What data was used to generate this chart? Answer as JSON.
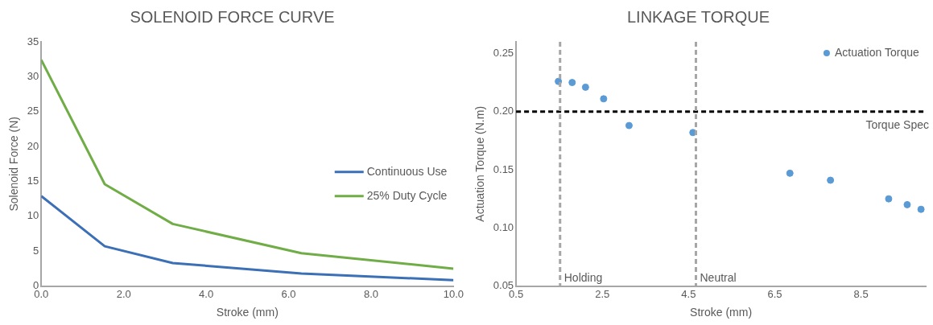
{
  "chart_data": [
    {
      "type": "line",
      "title": "SOLENOID FORCE CURVE",
      "xlabel": "Stroke (mm)",
      "ylabel": "Solenoid Force (N)",
      "x": [
        0,
        1.54,
        3.19,
        6.31,
        10
      ],
      "series": [
        {
          "name": "Continuous Use",
          "color": "#3b6fb6",
          "values": [
            12.9,
            5.7,
            3.3,
            1.8,
            0.85
          ]
        },
        {
          "name": "25% Duty Cycle",
          "color": "#70ad47",
          "values": [
            32.4,
            14.6,
            8.9,
            4.7,
            2.5
          ]
        }
      ],
      "xlim": [
        0,
        10
      ],
      "xticks": [
        {
          "value": 0,
          "label": "0.0"
        },
        {
          "value": 2,
          "label": "2.0"
        },
        {
          "value": 4,
          "label": "4.0"
        },
        {
          "value": 6,
          "label": "6.0"
        },
        {
          "value": 8,
          "label": "8.0"
        },
        {
          "value": 10,
          "label": "10.0"
        }
      ],
      "ylim": [
        0,
        35
      ],
      "yticks": [
        0,
        5,
        10,
        15,
        20,
        25,
        30,
        35
      ],
      "grid": false,
      "legend": "right",
      "marker": "none",
      "line_style": "solid"
    },
    {
      "type": "scatter",
      "title": "LINKAGE TORQUE",
      "xlabel": "Stroke (mm)",
      "ylabel": "Actuation Torque (N.m)",
      "series": [
        {
          "name": "Actuation Torque",
          "color": "#5b9bd5",
          "x": [
            1.48,
            1.8,
            2.11,
            2.53,
            3.12,
            4.6,
            6.85,
            7.79,
            9.14,
            9.57,
            9.89
          ],
          "values": [
            0.226,
            0.225,
            0.221,
            0.211,
            0.188,
            0.182,
            0.147,
            0.141,
            0.125,
            0.12,
            0.116
          ]
        }
      ],
      "xlim": [
        0.5,
        10
      ],
      "xticks": [
        0.5,
        2.5,
        4.5,
        6.5,
        8.5
      ],
      "ylim": [
        0.05,
        0.26
      ],
      "yticks": [
        0.05,
        {
          "value": 0.1,
          "label": "0.10"
        },
        0.15,
        {
          "value": 0.2,
          "label": "0.20"
        },
        0.25
      ],
      "ref_lines": [
        {
          "axis": "y",
          "value": 0.2,
          "label": "Torque Spec",
          "color": "#000000",
          "line_style": "dashed"
        },
        {
          "axis": "x",
          "value": 1.52,
          "label": "Holding",
          "color": "#a6a6a6",
          "line_style": "dashed"
        },
        {
          "axis": "x",
          "value": 4.67,
          "label": "Neutral",
          "color": "#a6a6a6",
          "line_style": "dashed"
        }
      ],
      "grid": false,
      "legend": "top right",
      "marker": "circle"
    }
  ]
}
